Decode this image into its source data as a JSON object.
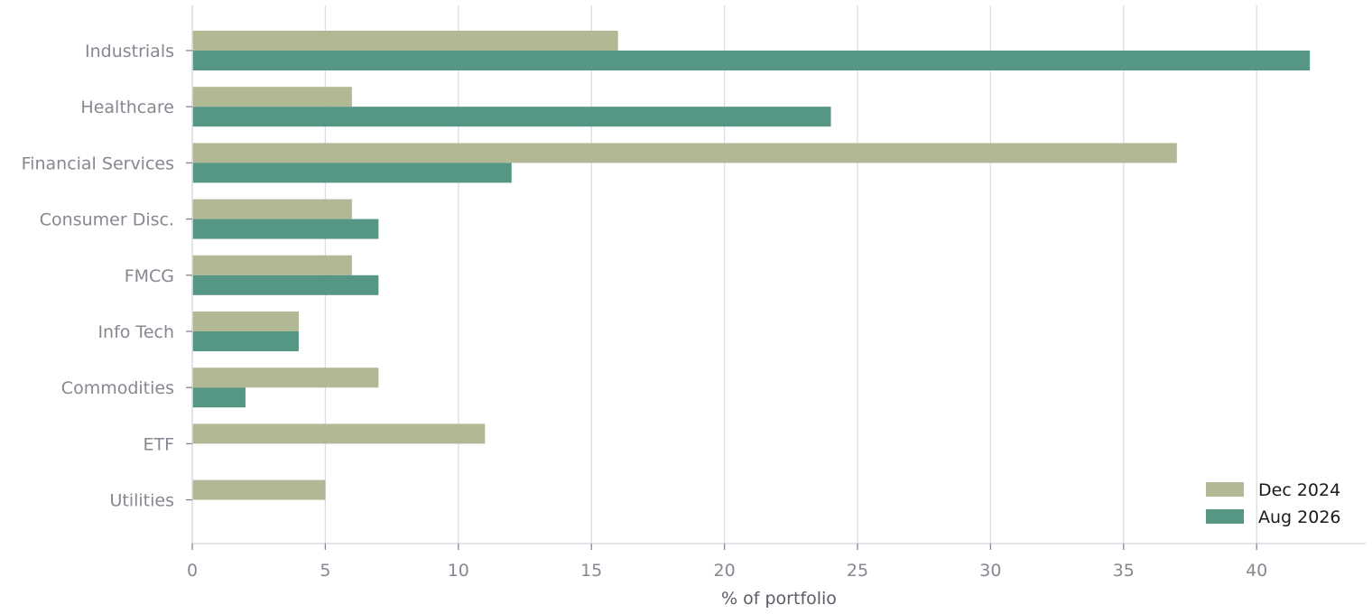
{
  "chart_data": {
    "type": "bar",
    "orientation": "horizontal",
    "categories": [
      "Industrials",
      "Healthcare",
      "Financial Services",
      "Consumer Disc.",
      "FMCG",
      "Info Tech",
      "Commodities",
      "ETF",
      "Utilities"
    ],
    "series": [
      {
        "name": "Dec 2024",
        "color": "#b0b993",
        "values": [
          16,
          6,
          37,
          6,
          6,
          4,
          7,
          11,
          5
        ]
      },
      {
        "name": "Aug 2026",
        "color": "#559685",
        "values": [
          42,
          24,
          12,
          7,
          7,
          4,
          2,
          0,
          0
        ]
      }
    ],
    "xlabel": "% of portfolio",
    "ylabel": "",
    "xlim": [
      0,
      44
    ],
    "xticks": [
      0,
      5,
      10,
      15,
      20,
      25,
      30,
      35,
      40
    ],
    "grid": "vertical",
    "legend_position": "bottom-right"
  }
}
